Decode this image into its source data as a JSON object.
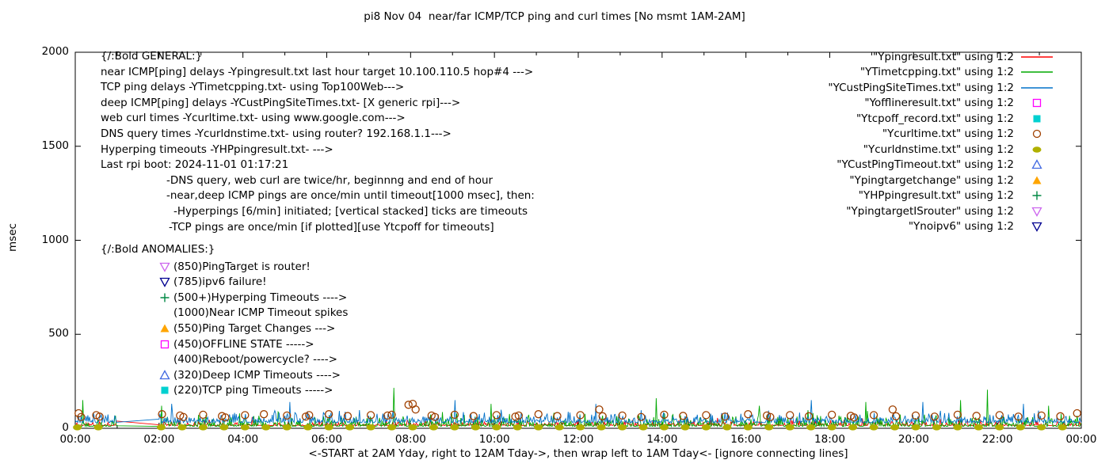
{
  "chart_data": {
    "type": "line",
    "title": "pi8 Nov 04  near/far ICMP/TCP ping and curl times [No msmt 1AM-2AM]",
    "xlabel": "<-START at 2AM Yday, right to 12AM Tday->, then wrap left to 1AM Tday<- [ignore connecting lines]",
    "ylabel": "msec",
    "ylim": [
      0,
      2000
    ],
    "x_hours": [
      0,
      24
    ],
    "x_ticks": [
      "00:00",
      "02:00",
      "04:00",
      "06:00",
      "08:00",
      "10:00",
      "12:00",
      "14:00",
      "16:00",
      "18:00",
      "20:00",
      "22:00",
      "00:00"
    ],
    "y_ticks": [
      0,
      500,
      1000,
      1500,
      2000
    ],
    "grid": "off",
    "legend_position": "top-right-outside-look",
    "measurement_gap_hours": [
      1,
      2
    ],
    "series": [
      {
        "name": "Ypingresult.txt",
        "color": "#ff0000",
        "base": 15,
        "amp": 40,
        "pow": 4,
        "seed": 11,
        "spikes": [
          [
            4.2,
            60
          ],
          [
            15.3,
            55
          ]
        ]
      },
      {
        "name": "YTimetcpping.txt",
        "color": "#00a800",
        "base": 10,
        "amp": 90,
        "pow": 3,
        "seed": 22,
        "spikes": [
          [
            0.18,
            150
          ],
          [
            2.05,
            120
          ],
          [
            7.58,
            215
          ],
          [
            9.9,
            130
          ],
          [
            13.85,
            160
          ],
          [
            16.3,
            120
          ],
          [
            18.85,
            140
          ],
          [
            21.1,
            150
          ],
          [
            21.75,
            205
          ],
          [
            23.2,
            120
          ]
        ]
      },
      {
        "name": "YCustPingSiteTimes.txt",
        "color": "#0070c8",
        "base": 30,
        "amp": 70,
        "pow": 2.5,
        "seed": 33,
        "spikes": [
          [
            2.3,
            130
          ],
          [
            5.1,
            140
          ],
          [
            9.05,
            150
          ],
          [
            12.4,
            130
          ],
          [
            17.55,
            150
          ],
          [
            20.2,
            140
          ],
          [
            22.6,
            130
          ]
        ]
      }
    ],
    "markers": [
      {
        "name": "Ycurltime.txt",
        "type": "open-circle",
        "color": "#a04000",
        "points": [
          [
            0.08,
            80
          ],
          [
            0.14,
            60
          ],
          [
            0.5,
            70
          ],
          [
            0.58,
            62
          ],
          [
            2.07,
            75
          ],
          [
            2.5,
            68
          ],
          [
            2.58,
            60
          ],
          [
            3.05,
            72
          ],
          [
            3.5,
            65
          ],
          [
            3.58,
            58
          ],
          [
            4.05,
            70
          ],
          [
            4.5,
            75
          ],
          [
            5.05,
            68
          ],
          [
            5.5,
            62
          ],
          [
            5.58,
            70
          ],
          [
            6.05,
            75
          ],
          [
            6.5,
            65
          ],
          [
            7.05,
            70
          ],
          [
            7.45,
            68
          ],
          [
            7.55,
            72
          ],
          [
            7.95,
            125
          ],
          [
            8.05,
            130
          ],
          [
            8.12,
            100
          ],
          [
            8.5,
            68
          ],
          [
            8.58,
            60
          ],
          [
            9.05,
            72
          ],
          [
            9.5,
            65
          ],
          [
            10.05,
            70
          ],
          [
            10.5,
            62
          ],
          [
            10.58,
            68
          ],
          [
            11.05,
            75
          ],
          [
            11.5,
            65
          ],
          [
            12.05,
            70
          ],
          [
            12.5,
            100
          ],
          [
            12.58,
            64
          ],
          [
            13.05,
            68
          ],
          [
            13.5,
            60
          ],
          [
            14.05,
            72
          ],
          [
            14.5,
            66
          ],
          [
            15.05,
            70
          ],
          [
            15.5,
            62
          ],
          [
            16.05,
            75
          ],
          [
            16.5,
            68
          ],
          [
            16.58,
            60
          ],
          [
            17.05,
            70
          ],
          [
            17.5,
            64
          ],
          [
            18.05,
            72
          ],
          [
            18.5,
            66
          ],
          [
            18.58,
            58
          ],
          [
            19.05,
            70
          ],
          [
            19.5,
            100
          ],
          [
            19.58,
            64
          ],
          [
            20.05,
            68
          ],
          [
            20.5,
            62
          ],
          [
            21.05,
            72
          ],
          [
            21.5,
            66
          ],
          [
            22.05,
            70
          ],
          [
            22.5,
            62
          ],
          [
            23.05,
            68
          ],
          [
            23.5,
            64
          ],
          [
            23.9,
            80
          ]
        ]
      },
      {
        "name": "Ycurldnstime.txt",
        "type": "filled-circle",
        "color": "#b0b000",
        "pattern": {
          "start": 0,
          "end": 23.5,
          "step": 0.5,
          "offset": 0.05,
          "skip_from": 1,
          "skip_to": 2,
          "y": 5
        }
      }
    ]
  },
  "legend": [
    {
      "label": "\"Ypingresult.txt\" using 1:2",
      "symbol": "line",
      "color": "#ff0000"
    },
    {
      "label": "\"YTimetcpping.txt\" using 1:2",
      "symbol": "line",
      "color": "#00a800"
    },
    {
      "label": "\"YCustPingSiteTimes.txt\" using 1:2",
      "symbol": "line",
      "color": "#0070c8"
    },
    {
      "label": "\"Yofflineresult.txt\" using 1:2",
      "symbol": "open-square",
      "color": "#ff00ff"
    },
    {
      "label": "\"Ytcpoff_record.txt\" using 1:2",
      "symbol": "filled-square",
      "color": "#00d0d0"
    },
    {
      "label": "\"Ycurltime.txt\" using 1:2",
      "symbol": "open-circle",
      "color": "#a04000"
    },
    {
      "label": "\"Ycurldnstime.txt\" using 1:2",
      "symbol": "filled-circle",
      "color": "#b0b000"
    },
    {
      "label": "\"YCustPingTimeout.txt\" using 1:2",
      "symbol": "open-triangle-up",
      "color": "#4169e1"
    },
    {
      "label": "\"Ypingtargetchange\" using 1:2",
      "symbol": "filled-triangle-up",
      "color": "#ffa500"
    },
    {
      "label": "\"YHPpingresult.txt\" using 1:2",
      "symbol": "plus",
      "color": "#008844"
    },
    {
      "label": "\"YpingtargetISrouter\" using 1:2",
      "symbol": "open-triangle-down",
      "color": "#cc66ee"
    },
    {
      "label": "\"Ynoipv6\" using 1:2",
      "symbol": "open-triangle-down",
      "color": "#000090"
    }
  ],
  "general_lines": [
    {
      "text": "{/:Bold GENERAL:}",
      "indent": 0
    },
    {
      "text": "near ICMP[ping] delays -Ypingresult.txt last hour target 10.100.110.5 hop#4 --->",
      "indent": 0
    },
    {
      "text": "TCP ping delays -YTimetcpping.txt- using Top100Web--->",
      "indent": 0
    },
    {
      "text": "deep ICMP[ping] delays -YCustPingSiteTimes.txt- [X generic rpi]--->",
      "indent": 0
    },
    {
      "text": "web curl times -Ycurltime.txt- using www.google.com--->",
      "indent": 0
    },
    {
      "text": "DNS query times -Ycurldnstime.txt- using router? 192.168.1.1--->",
      "indent": 0
    },
    {
      "text": "Hyperping timeouts -YHPpingresult.txt- --->",
      "indent": 0
    },
    {
      "text": "Last rpi boot: 2024-11-01 01:17:21",
      "indent": 0
    },
    {
      "text": "-DNS query, web curl are twice/hr, beginnng and end of hour",
      "indent": 83
    },
    {
      "text": "-near,deep ICMP pings are once/min until timeout[1000 msec], then:",
      "indent": 83
    },
    {
      "text": "-Hyperpings [6/min] initiated; [vertical stacked] ticks are timeouts",
      "indent": 92
    },
    {
      "text": "-TCP pings are once/min [if plotted][use Ytcpoff for timeouts]",
      "indent": 86
    }
  ],
  "anomalies_header": "{/:Bold ANOMALIES:}",
  "anomalies": [
    {
      "marker": "open-triangle-down",
      "color": "#cc66ee",
      "text": "(850)PingTarget is router!"
    },
    {
      "marker": "open-triangle-down",
      "color": "#000090",
      "text": "(785)ipv6 failure!"
    },
    {
      "marker": "plus",
      "color": "#008844",
      "text": "(500+)Hyperping Timeouts ---->"
    },
    {
      "marker": null,
      "color": "",
      "text": "(1000)Near ICMP Timeout spikes"
    },
    {
      "marker": "filled-triangle-up",
      "color": "#ffa500",
      "text": "(550)Ping Target Changes --->"
    },
    {
      "marker": "open-square",
      "color": "#ff00ff",
      "text": "(450)OFFLINE STATE ----->"
    },
    {
      "marker": null,
      "color": "",
      "text": "(400)Reboot/powercycle? ---->"
    },
    {
      "marker": "open-triangle-up",
      "color": "#4169e1",
      "text": "(320)Deep ICMP Timeouts ---->"
    },
    {
      "marker": "filled-square",
      "color": "#00d0d0",
      "text": "(220)TCP ping Timeouts ----->"
    }
  ]
}
